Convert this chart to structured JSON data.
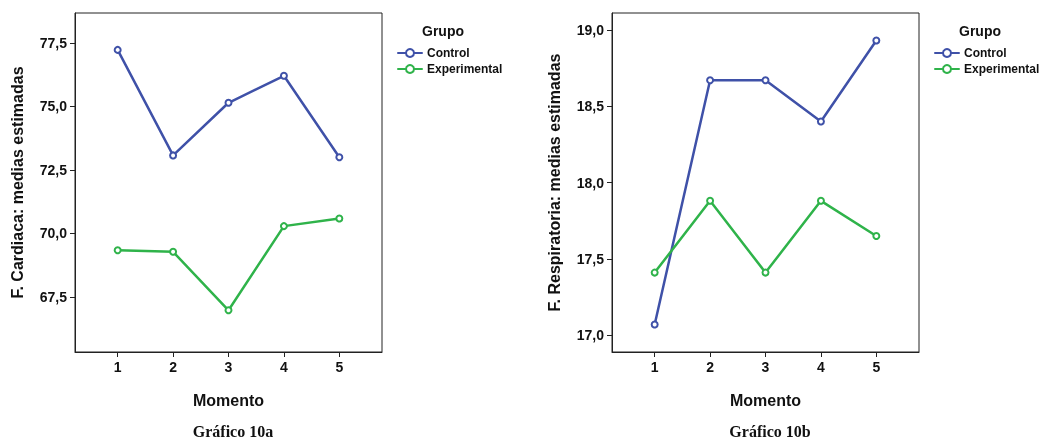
{
  "chart_data": [
    {
      "type": "line",
      "title": "Gráfico 10a",
      "xlabel": "Momento",
      "ylabel": "F. Cardiaca: medias estimadas",
      "legend_title": "Grupo",
      "legend": "right",
      "marker": "circle",
      "grid": false,
      "x": [
        1,
        2,
        3,
        4,
        5
      ],
      "xlim": [
        0.23,
        5.77
      ],
      "xticks": [
        1,
        2,
        3,
        4,
        5
      ],
      "ylim": [
        65.34,
        78.67
      ],
      "yticks": [
        {
          "value": 67.5,
          "label": "67,5"
        },
        {
          "value": 70,
          "label": "70,0"
        },
        {
          "value": 72.5,
          "label": "72,5"
        },
        {
          "value": 75,
          "label": "75,0"
        },
        {
          "value": 77.5,
          "label": "77,5"
        }
      ],
      "series": [
        {
          "name": "Control",
          "color": "#3f51a8",
          "values": [
            77.22,
            73.07,
            75.14,
            76.2,
            73.0
          ]
        },
        {
          "name": "Experimental",
          "color": "#2fb34a",
          "values": [
            69.34,
            69.28,
            66.98,
            70.29,
            70.59
          ]
        }
      ]
    },
    {
      "type": "line",
      "title": "Gráfico 10b",
      "xlabel": "Momento",
      "ylabel": "F. Respiratoria: medias estimadas",
      "legend_title": "Grupo",
      "legend": "right",
      "marker": "circle",
      "grid": false,
      "x": [
        1,
        2,
        3,
        4,
        5
      ],
      "xlim": [
        0.23,
        5.77
      ],
      "xticks": [
        1,
        2,
        3,
        4,
        5
      ],
      "ylim": [
        16.89,
        19.11
      ],
      "yticks": [
        {
          "value": 17,
          "label": "17,0"
        },
        {
          "value": 17.5,
          "label": "17,5"
        },
        {
          "value": 18,
          "label": "18,0"
        },
        {
          "value": 18.5,
          "label": "18,5"
        },
        {
          "value": 19,
          "label": "19,0"
        }
      ],
      "series": [
        {
          "name": "Control",
          "color": "#3f51a8",
          "values": [
            17.07,
            18.67,
            18.67,
            18.4,
            18.93
          ]
        },
        {
          "name": "Experimental",
          "color": "#2fb34a",
          "values": [
            17.41,
            17.88,
            17.41,
            17.88,
            17.65
          ]
        }
      ]
    }
  ]
}
